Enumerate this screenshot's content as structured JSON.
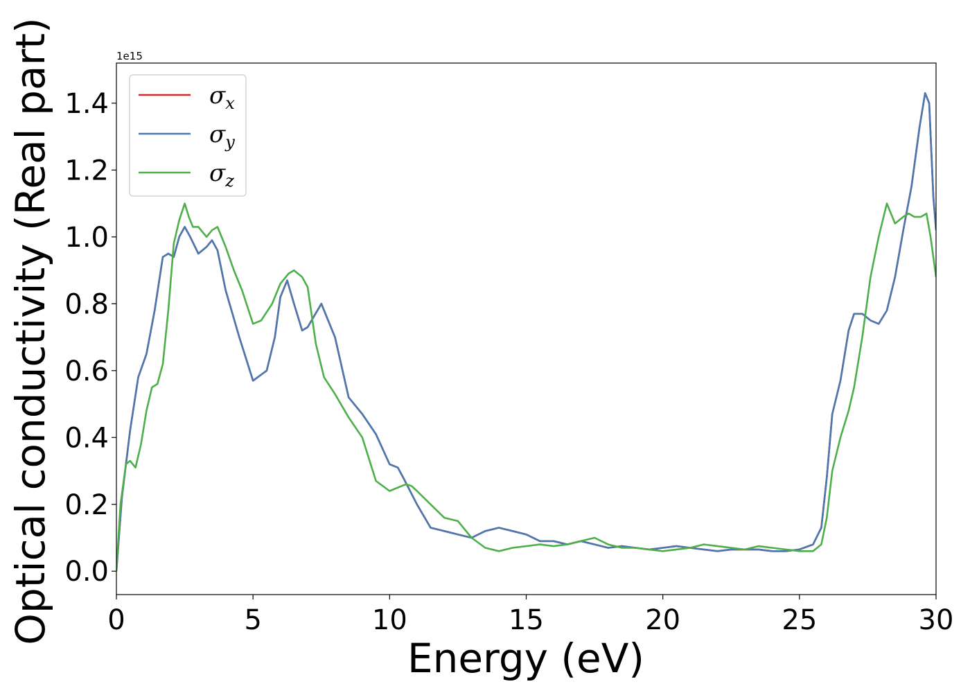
{
  "chart_data": {
    "type": "line",
    "title": "",
    "xlabel": "Energy (eV)",
    "ylabel": "Optical conductivity (Real part)",
    "y_offset_label": "1e15",
    "xlim": [
      0,
      30
    ],
    "ylim": [
      -0.07,
      1.52
    ],
    "xticks": [
      0,
      5,
      10,
      15,
      20,
      25,
      30
    ],
    "xtick_labels": [
      "0",
      "5",
      "10",
      "15",
      "20",
      "25",
      "30"
    ],
    "yticks": [
      0.0,
      0.2,
      0.4,
      0.6,
      0.8,
      1.0,
      1.2,
      1.4
    ],
    "ytick_labels": [
      "0.0",
      "0.2",
      "0.4",
      "0.6",
      "0.8",
      "1.0",
      "1.2",
      "1.4"
    ],
    "grid": false,
    "legend_position": "top-left",
    "series": [
      {
        "name": "σx",
        "symbol": "σ",
        "subscript": "x",
        "color": "#d62728",
        "x": [
          0,
          0.2,
          0.5,
          0.8,
          1.1,
          1.4,
          1.7,
          1.9,
          2.1,
          2.3,
          2.5,
          2.7,
          3.0,
          3.3,
          3.5,
          3.7,
          4.0,
          4.5,
          5.0,
          5.5,
          5.8,
          6.0,
          6.25,
          6.5,
          6.8,
          7.0,
          7.5,
          8.0,
          8.5,
          9.0,
          9.5,
          10.0,
          10.3,
          10.5,
          11.0,
          11.5,
          12.0,
          12.5,
          13.0,
          13.5,
          14.0,
          14.5,
          15.0,
          15.5,
          16.0,
          16.5,
          17.0,
          17.5,
          18.0,
          18.5,
          19.0,
          19.5,
          20.0,
          20.5,
          21.0,
          21.5,
          22.0,
          22.5,
          23.0,
          23.5,
          24.0,
          24.5,
          25.0,
          25.5,
          25.8,
          26.0,
          26.2,
          26.5,
          26.8,
          27.0,
          27.3,
          27.6,
          27.9,
          28.2,
          28.5,
          28.8,
          29.1,
          29.4,
          29.6,
          29.75,
          29.9,
          30.0
        ],
        "values": [
          0.0,
          0.22,
          0.42,
          0.58,
          0.65,
          0.78,
          0.94,
          0.95,
          0.94,
          1.0,
          1.03,
          1.0,
          0.95,
          0.97,
          0.99,
          0.96,
          0.84,
          0.7,
          0.57,
          0.6,
          0.7,
          0.82,
          0.87,
          0.8,
          0.72,
          0.73,
          0.8,
          0.7,
          0.52,
          0.47,
          0.41,
          0.32,
          0.31,
          0.28,
          0.2,
          0.13,
          0.12,
          0.11,
          0.1,
          0.12,
          0.13,
          0.12,
          0.11,
          0.09,
          0.09,
          0.08,
          0.09,
          0.08,
          0.07,
          0.075,
          0.07,
          0.065,
          0.07,
          0.075,
          0.07,
          0.065,
          0.06,
          0.065,
          0.065,
          0.065,
          0.06,
          0.06,
          0.065,
          0.08,
          0.13,
          0.28,
          0.47,
          0.57,
          0.72,
          0.77,
          0.77,
          0.75,
          0.74,
          0.78,
          0.88,
          1.02,
          1.15,
          1.33,
          1.43,
          1.4,
          1.12,
          1.02
        ]
      },
      {
        "name": "σy",
        "symbol": "σ",
        "subscript": "y",
        "color": "#4a78b0",
        "x": [
          0,
          0.2,
          0.5,
          0.8,
          1.1,
          1.4,
          1.7,
          1.9,
          2.1,
          2.3,
          2.5,
          2.7,
          3.0,
          3.3,
          3.5,
          3.7,
          4.0,
          4.5,
          5.0,
          5.5,
          5.8,
          6.0,
          6.25,
          6.5,
          6.8,
          7.0,
          7.5,
          8.0,
          8.5,
          9.0,
          9.5,
          10.0,
          10.3,
          10.5,
          11.0,
          11.5,
          12.0,
          12.5,
          13.0,
          13.5,
          14.0,
          14.5,
          15.0,
          15.5,
          16.0,
          16.5,
          17.0,
          17.5,
          18.0,
          18.5,
          19.0,
          19.5,
          20.0,
          20.5,
          21.0,
          21.5,
          22.0,
          22.5,
          23.0,
          23.5,
          24.0,
          24.5,
          25.0,
          25.5,
          25.8,
          26.0,
          26.2,
          26.5,
          26.8,
          27.0,
          27.3,
          27.6,
          27.9,
          28.2,
          28.5,
          28.8,
          29.1,
          29.4,
          29.6,
          29.75,
          29.9,
          30.0
        ],
        "values": [
          0.0,
          0.22,
          0.42,
          0.58,
          0.65,
          0.78,
          0.94,
          0.95,
          0.94,
          1.0,
          1.03,
          1.0,
          0.95,
          0.97,
          0.99,
          0.96,
          0.84,
          0.7,
          0.57,
          0.6,
          0.7,
          0.82,
          0.87,
          0.8,
          0.72,
          0.73,
          0.8,
          0.7,
          0.52,
          0.47,
          0.41,
          0.32,
          0.31,
          0.28,
          0.2,
          0.13,
          0.12,
          0.11,
          0.1,
          0.12,
          0.13,
          0.12,
          0.11,
          0.09,
          0.09,
          0.08,
          0.09,
          0.08,
          0.07,
          0.075,
          0.07,
          0.065,
          0.07,
          0.075,
          0.07,
          0.065,
          0.06,
          0.065,
          0.065,
          0.065,
          0.06,
          0.06,
          0.065,
          0.08,
          0.13,
          0.28,
          0.47,
          0.57,
          0.72,
          0.77,
          0.77,
          0.75,
          0.74,
          0.78,
          0.88,
          1.02,
          1.15,
          1.33,
          1.43,
          1.4,
          1.12,
          1.02
        ]
      },
      {
        "name": "σz",
        "symbol": "σ",
        "subscript": "z",
        "color": "#4daf4a",
        "x": [
          0,
          0.15,
          0.35,
          0.5,
          0.7,
          0.9,
          1.1,
          1.3,
          1.5,
          1.7,
          1.9,
          2.1,
          2.3,
          2.5,
          2.65,
          2.8,
          3.0,
          3.3,
          3.5,
          3.7,
          4.0,
          4.3,
          4.6,
          5.0,
          5.3,
          5.7,
          6.0,
          6.3,
          6.5,
          6.8,
          7.0,
          7.3,
          7.6,
          8.0,
          8.5,
          9.0,
          9.5,
          10.0,
          10.3,
          10.6,
          10.8,
          11.0,
          11.5,
          12.0,
          12.5,
          13.0,
          13.5,
          14.0,
          14.5,
          15.0,
          15.5,
          16.0,
          16.5,
          17.0,
          17.5,
          18.0,
          18.5,
          19.0,
          19.5,
          20.0,
          20.5,
          21.0,
          21.5,
          22.0,
          22.5,
          23.0,
          23.5,
          24.0,
          24.5,
          25.0,
          25.5,
          25.8,
          26.0,
          26.2,
          26.5,
          26.8,
          27.0,
          27.3,
          27.6,
          27.9,
          28.2,
          28.5,
          28.8,
          29.0,
          29.2,
          29.45,
          29.65,
          29.8,
          30.0
        ],
        "values": [
          0.0,
          0.2,
          0.32,
          0.33,
          0.31,
          0.38,
          0.48,
          0.55,
          0.56,
          0.62,
          0.78,
          0.98,
          1.05,
          1.1,
          1.06,
          1.03,
          1.03,
          1.0,
          1.02,
          1.03,
          0.97,
          0.9,
          0.84,
          0.74,
          0.75,
          0.8,
          0.86,
          0.89,
          0.9,
          0.88,
          0.85,
          0.68,
          0.58,
          0.53,
          0.46,
          0.4,
          0.27,
          0.24,
          0.25,
          0.26,
          0.255,
          0.24,
          0.2,
          0.16,
          0.15,
          0.1,
          0.07,
          0.06,
          0.07,
          0.075,
          0.08,
          0.075,
          0.08,
          0.09,
          0.1,
          0.08,
          0.07,
          0.07,
          0.065,
          0.06,
          0.065,
          0.07,
          0.08,
          0.075,
          0.07,
          0.065,
          0.075,
          0.07,
          0.065,
          0.06,
          0.06,
          0.08,
          0.16,
          0.3,
          0.4,
          0.48,
          0.55,
          0.7,
          0.88,
          1.0,
          1.1,
          1.04,
          1.06,
          1.07,
          1.06,
          1.06,
          1.07,
          1.0,
          0.88
        ]
      }
    ]
  }
}
